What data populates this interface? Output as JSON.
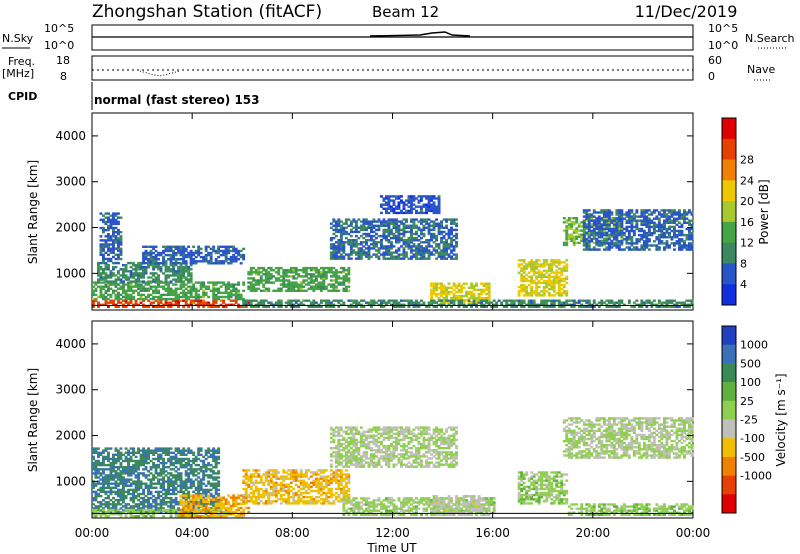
{
  "header": {
    "station": "Zhongshan Station (fitACF)",
    "beam": "Beam 12",
    "date": "11/Dec/2019"
  },
  "noise_panel": {
    "left_label": "N.Sky",
    "right_label": "N.Search",
    "left_ticks": [
      "10^5",
      "10^0"
    ],
    "right_ticks": [
      "10^5",
      "10^0"
    ]
  },
  "freq_panel": {
    "left_label": "Freq.",
    "left_unit": "[MHz]",
    "right_label": "Nave",
    "left_ticks": [
      "18",
      "8"
    ],
    "right_ticks": [
      "60",
      "0"
    ]
  },
  "cpid_panel": {
    "label": "CPID",
    "text": "normal (fast stereo) 153"
  },
  "colors": {
    "power": [
      "#1030e0",
      "#2a55c8",
      "#3c8860",
      "#45a545",
      "#a8c830",
      "#f0c800",
      "#f08000",
      "#e84000",
      "#e00000"
    ],
    "velocity": [
      "#2040c0",
      "#3a70b8",
      "#3a8a58",
      "#60b040",
      "#90d050",
      "#c0c0b8",
      "#f0c000",
      "#f08000",
      "#e84000",
      "#e00000"
    ]
  },
  "chart_data": [
    {
      "type": "heatmap",
      "name": "power",
      "ylabel": "Slant Range [km]",
      "ylim": [
        200,
        4500
      ],
      "y_ticks": [
        "1000",
        "2000",
        "3000",
        "4000"
      ],
      "xlim": [
        0,
        24
      ],
      "colorbar_label": "Power [dB]",
      "colorbar_ticks": [
        "4",
        "8",
        "12",
        "16",
        "20",
        "24",
        "28"
      ],
      "colorbar_range": [
        0,
        32
      ],
      "regions": [
        {
          "t0": 0.0,
          "t1": 6.2,
          "r0": 250,
          "r1": 420,
          "value": 27
        },
        {
          "t0": 0.0,
          "t1": 6.0,
          "r0": 420,
          "r1": 800,
          "value": 12
        },
        {
          "t0": 0.2,
          "t1": 4.0,
          "r0": 800,
          "r1": 1250,
          "value": 9
        },
        {
          "t0": 0.3,
          "t1": 1.2,
          "r0": 1250,
          "r1": 2300,
          "value": 6
        },
        {
          "t0": 6.2,
          "t1": 10.2,
          "r0": 600,
          "r1": 1100,
          "value": 12
        },
        {
          "t0": 2.0,
          "t1": 6.0,
          "r0": 1200,
          "r1": 1600,
          "value": 6
        },
        {
          "t0": 9.5,
          "t1": 14.5,
          "r0": 1300,
          "r1": 2200,
          "value": 7
        },
        {
          "t0": 11.5,
          "t1": 13.8,
          "r0": 2300,
          "r1": 2700,
          "value": 5
        },
        {
          "t0": 13.5,
          "t1": 15.8,
          "r0": 350,
          "r1": 800,
          "value": 18
        },
        {
          "t0": 17.0,
          "t1": 19.0,
          "r0": 500,
          "r1": 1300,
          "value": 18
        },
        {
          "t0": 18.8,
          "t1": 21.2,
          "r0": 1600,
          "r1": 2200,
          "value": 14
        },
        {
          "t0": 19.6,
          "t1": 24.0,
          "r0": 1500,
          "r1": 2400,
          "value": 6
        },
        {
          "t0": 6.0,
          "t1": 24.0,
          "r0": 250,
          "r1": 400,
          "value": 9
        }
      ]
    },
    {
      "type": "heatmap",
      "name": "velocity",
      "ylabel": "Slant Range [km]",
      "ylim": [
        200,
        4500
      ],
      "y_ticks": [
        "1000",
        "2000",
        "3000",
        "4000"
      ],
      "xlim": [
        0,
        24
      ],
      "colorbar_label": "Velocity [m s⁻¹]",
      "colorbar_ticks": [
        "1000",
        "500",
        "100",
        "25",
        "-25",
        "-100",
        "-500",
        "-1000"
      ],
      "colorbar_range": [
        -1200,
        1200
      ],
      "regions": [
        {
          "t0": 0.0,
          "t1": 5.0,
          "r0": 300,
          "r1": 1700,
          "value": 700
        },
        {
          "t0": 0.0,
          "t1": 5.5,
          "r0": 220,
          "r1": 400,
          "value": 150
        },
        {
          "t0": 3.5,
          "t1": 6.2,
          "r0": 220,
          "r1": 700,
          "value": -400
        },
        {
          "t0": 6.0,
          "t1": 10.2,
          "r0": 500,
          "r1": 1250,
          "value": -350
        },
        {
          "t0": 9.5,
          "t1": 14.5,
          "r0": 1300,
          "r1": 2200,
          "value": 5
        },
        {
          "t0": 10.0,
          "t1": 16.0,
          "r0": 250,
          "r1": 650,
          "value": 80
        },
        {
          "t0": 13.5,
          "t1": 15.5,
          "r0": 250,
          "r1": 700,
          "value": -80
        },
        {
          "t0": 17.0,
          "t1": 19.0,
          "r0": 500,
          "r1": 1200,
          "value": 120
        },
        {
          "t0": 18.8,
          "t1": 24.0,
          "r0": 1500,
          "r1": 2400,
          "value": 5
        },
        {
          "t0": 19.0,
          "t1": 24.0,
          "r0": 250,
          "r1": 500,
          "value": 150
        }
      ]
    }
  ],
  "x_axis": {
    "ticks": [
      "00:00",
      "04:00",
      "08:00",
      "12:00",
      "16:00",
      "20:00",
      "00:00"
    ],
    "label": "Time UT"
  }
}
